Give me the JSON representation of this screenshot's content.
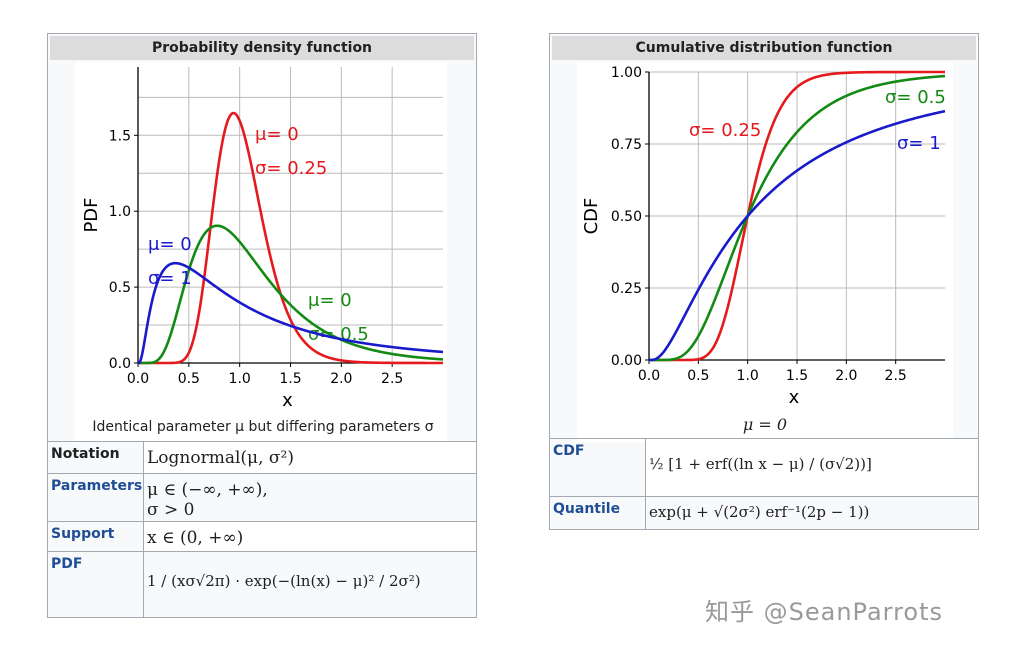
{
  "pdf_box": {
    "title": "Probability density function",
    "caption": "Identical parameter μ but differing parameters σ",
    "rows": [
      {
        "label": "Notation",
        "value": "Lognormal(μ, σ²)"
      },
      {
        "label": "Parameters",
        "value": "μ ∈ (−∞, +∞),",
        "value2": "σ > 0"
      },
      {
        "label": "Support",
        "value": "x ∈ (0, +∞)"
      },
      {
        "label": "PDF",
        "value": "1 / (xσ√2π) · exp(−(ln(x) − μ)² / 2σ²)"
      }
    ]
  },
  "cdf_box": {
    "title": "Cumulative distribution function",
    "caption": "μ = 0",
    "rows": [
      {
        "label": "CDF",
        "value": "½ [1 + erf((ln x − μ) / (σ√2))]"
      },
      {
        "label": "Quantile",
        "value": "exp(μ + √(2σ²) erf⁻¹(2p − 1))"
      }
    ]
  },
  "chart_data": [
    {
      "type": "line",
      "xlabel": "x",
      "ylabel": "PDF",
      "xlim": [
        0,
        3
      ],
      "ylim": [
        0,
        1.95
      ],
      "xticks": [
        "0.0",
        "0.5",
        "1.0",
        "1.5",
        "2.0",
        "2.5"
      ],
      "yticks": [
        "0.0",
        "0.5",
        "1.0",
        "1.5"
      ],
      "grid": true,
      "series": [
        {
          "mu": 0,
          "sigma": 0.25,
          "color": "#e41a1c",
          "label_line1": "μ= 0",
          "label_line2": "σ= 0.25"
        },
        {
          "mu": 0,
          "sigma": 0.5,
          "color": "#138a13",
          "label_line1": "μ= 0",
          "label_line2": "σ= 0.5"
        },
        {
          "mu": 0,
          "sigma": 1,
          "color": "#1a1acd",
          "label_line1": "μ= 0",
          "label_line2": "σ= 1"
        }
      ]
    },
    {
      "type": "line",
      "xlabel": "x",
      "ylabel": "CDF",
      "xlim": [
        0,
        3
      ],
      "ylim": [
        0,
        1
      ],
      "xticks": [
        "0.0",
        "0.5",
        "1.0",
        "1.5",
        "2.0",
        "2.5"
      ],
      "yticks": [
        "0.00",
        "0.25",
        "0.50",
        "0.75",
        "1.00"
      ],
      "grid": true,
      "series": [
        {
          "mu": 0,
          "sigma": 0.25,
          "color": "#e41a1c",
          "label": "σ= 0.25"
        },
        {
          "mu": 0,
          "sigma": 0.5,
          "color": "#138a13",
          "label": "σ= 0.5"
        },
        {
          "mu": 0,
          "sigma": 1,
          "color": "#1a1acd",
          "label": "σ= 1"
        }
      ]
    }
  ],
  "watermark": "知乎 @SeanParrots"
}
